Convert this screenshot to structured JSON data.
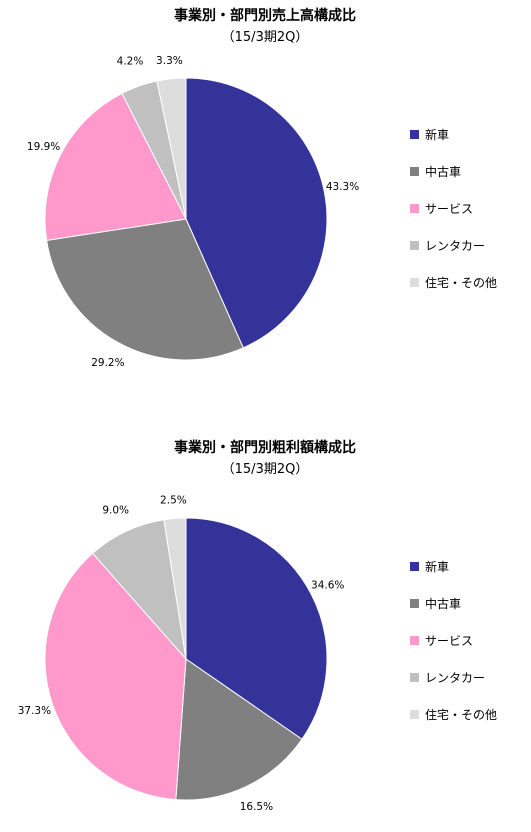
{
  "chart_data": [
    {
      "type": "pie",
      "title": "事業別・部門別売上高構成比",
      "subtitle": "（15/3期2Q）",
      "categories": [
        "新車",
        "中古車",
        "サービス",
        "レンタカー",
        "住宅・その他"
      ],
      "values": [
        43.3,
        29.2,
        19.9,
        4.2,
        3.3
      ],
      "value_labels": [
        "43.3%",
        "29.2%",
        "19.9%",
        "4.2%",
        "3.3%"
      ],
      "colors": [
        "#333399",
        "#808080",
        "#ff99cc",
        "#c0c0c0",
        "#dddddd"
      ],
      "legend": "right"
    },
    {
      "type": "pie",
      "title": "事業別・部門別粗利額構成比",
      "subtitle": "（15/3期2Q）",
      "categories": [
        "新車",
        "中古車",
        "サービス",
        "レンタカー",
        "住宅・その他"
      ],
      "values": [
        34.6,
        16.5,
        37.3,
        9.0,
        2.5
      ],
      "value_labels": [
        "34.6%",
        "16.5%",
        "37.3%",
        "9.0%",
        "2.5%"
      ],
      "colors": [
        "#333399",
        "#808080",
        "#ff99cc",
        "#c0c0c0",
        "#dddddd"
      ],
      "legend": "right"
    }
  ]
}
